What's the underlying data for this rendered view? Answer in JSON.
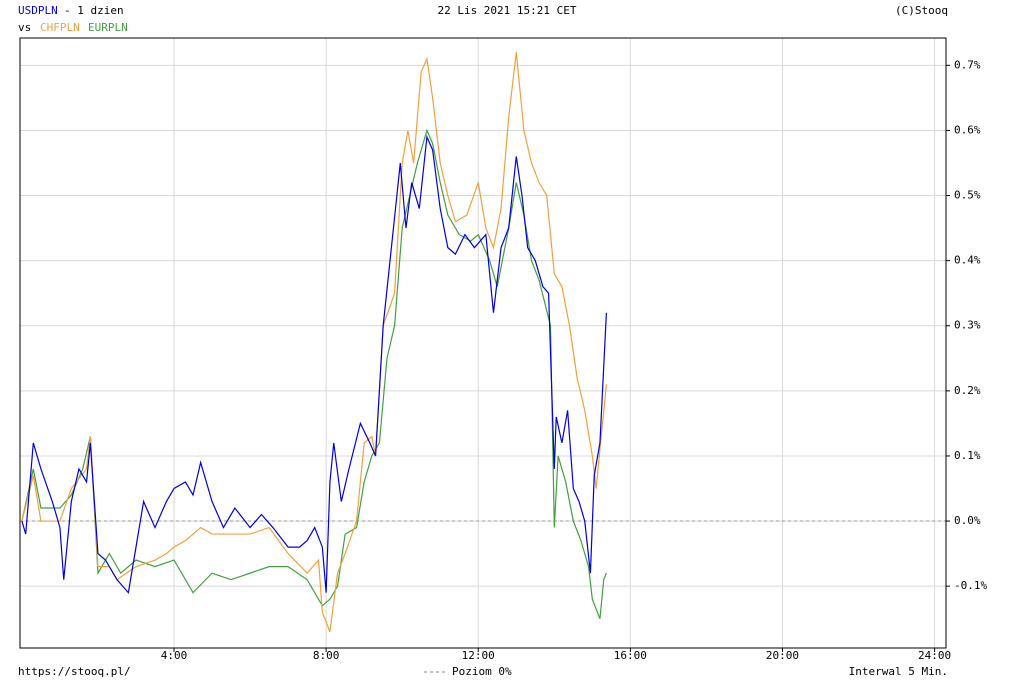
{
  "chart_data": {
    "type": "line",
    "title": "22 Lis 2021 15:21 CET",
    "period": "- 1 dzien",
    "compare_label": "vs",
    "copyright": "(C)Stooq",
    "source": "https://stooq.pl/",
    "interval": "Interwal 5 Min.",
    "reference_line": {
      "value": 0,
      "label": "Poziom 0%"
    },
    "xlim": [
      -0.05,
      24.3
    ],
    "ylim": [
      -0.195,
      0.742
    ],
    "xticks": [
      {
        "value": 4,
        "label": "4:00"
      },
      {
        "value": 8,
        "label": "8:00"
      },
      {
        "value": 12,
        "label": "12:00"
      },
      {
        "value": 16,
        "label": "16:00"
      },
      {
        "value": 20,
        "label": "20:00"
      },
      {
        "value": 24,
        "label": "24:00"
      }
    ],
    "yticks": [
      {
        "value": -0.1,
        "label": "-0.1%"
      },
      {
        "value": 0,
        "label": "0.0%"
      },
      {
        "value": 0.1,
        "label": "0.1%"
      },
      {
        "value": 0.2,
        "label": "0.2%"
      },
      {
        "value": 0.3,
        "label": "0.3%"
      },
      {
        "value": 0.4,
        "label": "0.4%"
      },
      {
        "value": 0.5,
        "label": "0.5%"
      },
      {
        "value": 0.6,
        "label": "0.6%"
      },
      {
        "value": 0.7,
        "label": "0.7%"
      }
    ],
    "grid": true,
    "series": [
      {
        "name": "USDPLN",
        "color": "#0000dd",
        "x": [
          0,
          0.1,
          0.3,
          0.5,
          0.8,
          1.0,
          1.1,
          1.3,
          1.5,
          1.7,
          1.8,
          2.0,
          2.2,
          2.5,
          2.8,
          3.0,
          3.2,
          3.5,
          3.8,
          4.0,
          4.3,
          4.5,
          4.7,
          5.0,
          5.3,
          5.6,
          6.0,
          6.3,
          6.6,
          7.0,
          7.3,
          7.5,
          7.7,
          7.9,
          8.0,
          8.1,
          8.2,
          8.4,
          8.6,
          8.9,
          9.15,
          9.3,
          9.5,
          9.95,
          10.1,
          10.25,
          10.45,
          10.65,
          10.8,
          11.0,
          11.2,
          11.4,
          11.65,
          11.9,
          12.2,
          12.4,
          12.6,
          12.8,
          13.0,
          13.15,
          13.3,
          13.5,
          13.7,
          13.85,
          14.0,
          14.05,
          14.2,
          14.35,
          14.5,
          14.65,
          14.8,
          14.95,
          15.05,
          15.2,
          15.37
        ],
        "values": [
          0,
          -0.02,
          0.12,
          0.08,
          0.03,
          -0.01,
          -0.09,
          0.03,
          0.08,
          0.06,
          0.12,
          -0.05,
          -0.06,
          -0.09,
          -0.11,
          -0.04,
          0.03,
          -0.01,
          0.03,
          0.05,
          0.06,
          0.04,
          0.09,
          0.03,
          -0.01,
          0.02,
          -0.01,
          0.01,
          -0.01,
          -0.04,
          -0.04,
          -0.03,
          -0.01,
          -0.04,
          -0.11,
          0.06,
          0.12,
          0.03,
          0.08,
          0.15,
          0.12,
          0.1,
          0.3,
          0.55,
          0.45,
          0.52,
          0.48,
          0.59,
          0.57,
          0.48,
          0.42,
          0.41,
          0.44,
          0.42,
          0.44,
          0.32,
          0.42,
          0.45,
          0.56,
          0.5,
          0.42,
          0.4,
          0.36,
          0.35,
          0.08,
          0.16,
          0.12,
          0.17,
          0.05,
          0.03,
          0,
          -0.08,
          0.07,
          0.12,
          0.32
        ]
      },
      {
        "name": "CHFPLN",
        "color": "#f0a040",
        "x": [
          0,
          0.3,
          0.5,
          1.0,
          1.3,
          1.7,
          1.8,
          2.0,
          2.3,
          2.5,
          3.0,
          3.5,
          3.8,
          4.0,
          4.3,
          4.7,
          5.0,
          5.5,
          6.0,
          6.5,
          7.0,
          7.5,
          7.8,
          7.9,
          8.1,
          8.3,
          8.5,
          8.8,
          9.0,
          9.2,
          9.3,
          9.5,
          9.8,
          10.0,
          10.15,
          10.3,
          10.5,
          10.65,
          10.8,
          11.0,
          11.2,
          11.4,
          11.7,
          12.0,
          12.2,
          12.4,
          12.6,
          12.8,
          13.0,
          13.2,
          13.4,
          13.6,
          13.8,
          14.0,
          14.2,
          14.4,
          14.6,
          14.8,
          15.0,
          15.1,
          15.25,
          15.37
        ],
        "values": [
          0,
          0.07,
          0,
          0,
          0.05,
          0.08,
          0.13,
          -0.07,
          -0.07,
          -0.09,
          -0.07,
          -0.06,
          -0.05,
          -0.04,
          -0.03,
          -0.01,
          -0.02,
          -0.02,
          -0.02,
          -0.01,
          -0.05,
          -0.08,
          -0.06,
          -0.14,
          -0.17,
          -0.08,
          -0.05,
          0,
          0.12,
          0.13,
          0.1,
          0.3,
          0.35,
          0.55,
          0.6,
          0.55,
          0.69,
          0.71,
          0.65,
          0.55,
          0.5,
          0.46,
          0.47,
          0.52,
          0.45,
          0.42,
          0.48,
          0.62,
          0.72,
          0.6,
          0.55,
          0.52,
          0.5,
          0.38,
          0.36,
          0.3,
          0.22,
          0.17,
          0.1,
          0.05,
          0.14,
          0.21
        ]
      },
      {
        "name": "EURPLN",
        "color": "#40a040",
        "x": [
          0,
          0.3,
          0.5,
          1.0,
          1.3,
          1.6,
          1.8,
          2.0,
          2.3,
          2.6,
          3.0,
          3.5,
          4.0,
          4.5,
          5.0,
          5.5,
          6.0,
          6.5,
          7.0,
          7.5,
          7.9,
          8.1,
          8.3,
          8.5,
          8.8,
          9.0,
          9.2,
          9.4,
          9.6,
          9.8,
          10.0,
          10.2,
          10.4,
          10.65,
          10.8,
          11.0,
          11.2,
          11.5,
          11.8,
          12.0,
          12.3,
          12.5,
          12.8,
          13.0,
          13.2,
          13.4,
          13.6,
          13.9,
          14.0,
          14.1,
          14.3,
          14.5,
          14.7,
          14.9,
          15.0,
          15.2,
          15.3,
          15.37
        ],
        "values": [
          0,
          0.08,
          0.02,
          0.02,
          0.04,
          0.08,
          0.13,
          -0.08,
          -0.05,
          -0.08,
          -0.06,
          -0.07,
          -0.06,
          -0.11,
          -0.08,
          -0.09,
          -0.08,
          -0.07,
          -0.07,
          -0.09,
          -0.13,
          -0.12,
          -0.1,
          -0.02,
          -0.01,
          0.06,
          0.1,
          0.12,
          0.25,
          0.3,
          0.45,
          0.5,
          0.55,
          0.6,
          0.58,
          0.52,
          0.47,
          0.44,
          0.43,
          0.44,
          0.4,
          0.36,
          0.45,
          0.52,
          0.47,
          0.4,
          0.37,
          0.3,
          -0.01,
          0.1,
          0.06,
          0,
          -0.03,
          -0.07,
          -0.12,
          -0.15,
          -0.09,
          -0.08
        ]
      }
    ]
  }
}
